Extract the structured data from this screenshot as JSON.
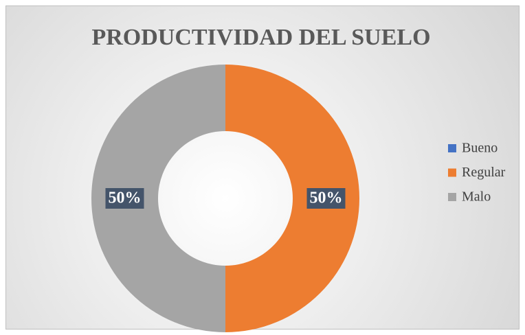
{
  "chart_data": {
    "type": "donut",
    "title": "PRODUCTIVIDAD DEL SUELO",
    "categories": [
      "Bueno",
      "Regular",
      "Malo"
    ],
    "values": [
      0,
      50,
      50
    ],
    "value_labels": [
      null,
      "50%",
      "50%"
    ],
    "colors": [
      "#4472c4",
      "#ed7d31",
      "#a5a5a5"
    ],
    "legend": "right"
  }
}
